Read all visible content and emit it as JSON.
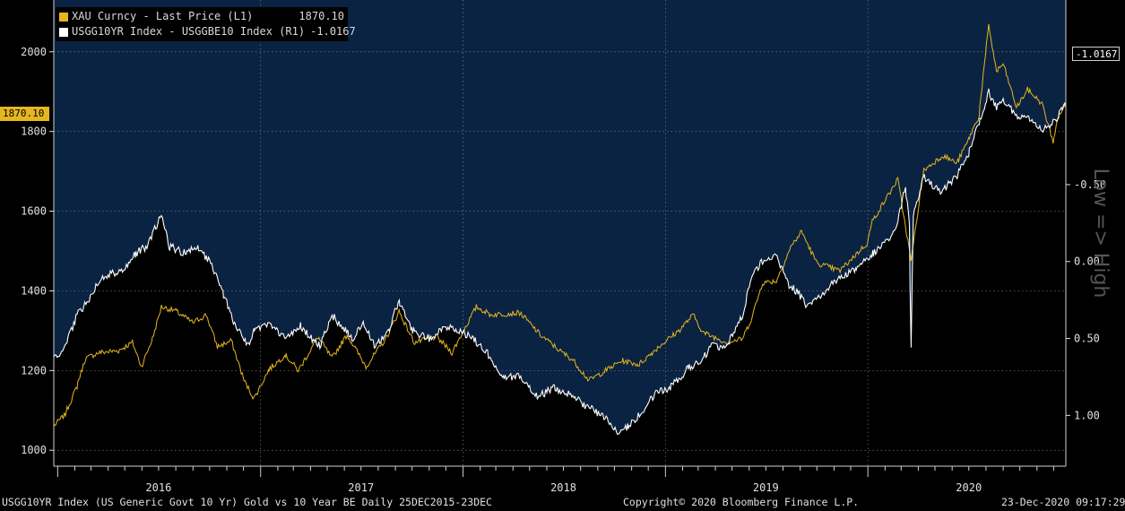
{
  "chart_data": {
    "type": "line",
    "title": "USGG10YR Index (US Generic Govt 10 Yr) Gold vs 10 Year BE  Daily 25DEC2015-23DEC",
    "x_range": [
      "2015-12-25",
      "2020-12-23"
    ],
    "year_labels": [
      "2016",
      "2017",
      "2018",
      "2019",
      "2020"
    ],
    "left_axis": {
      "ticks": [
        1000,
        1200,
        1400,
        1600,
        1800,
        2000
      ],
      "range": [
        960,
        2130
      ]
    },
    "right_axis": {
      "ticks": [
        -0.5,
        0.0,
        0.5,
        1.0
      ],
      "tick_labels": [
        "-0.50",
        "0.00",
        "0.50",
        "1.00"
      ],
      "range": [
        1.33,
        -1.7
      ],
      "inverted": true,
      "side_label": "Low => High"
    },
    "grid": true,
    "series": [
      {
        "name": "XAU Curncy - Last Price (L1)",
        "axis": "left",
        "color": "#e6b61e",
        "last_value": "1870.10",
        "points": [
          [
            "2015-12-25",
            1060
          ],
          [
            "2016-01-15",
            1090
          ],
          [
            "2016-02-05",
            1160
          ],
          [
            "2016-02-20",
            1230
          ],
          [
            "2016-03-15",
            1245
          ],
          [
            "2016-04-20",
            1250
          ],
          [
            "2016-05-15",
            1270
          ],
          [
            "2016-05-31",
            1210
          ],
          [
            "2016-06-20",
            1280
          ],
          [
            "2016-07-06",
            1360
          ],
          [
            "2016-08-01",
            1350
          ],
          [
            "2016-09-01",
            1320
          ],
          [
            "2016-09-25",
            1340
          ],
          [
            "2016-10-15",
            1260
          ],
          [
            "2016-11-10",
            1275
          ],
          [
            "2016-12-01",
            1180
          ],
          [
            "2016-12-20",
            1130
          ],
          [
            "2017-01-15",
            1200
          ],
          [
            "2017-02-15",
            1240
          ],
          [
            "2017-03-10",
            1200
          ],
          [
            "2017-04-15",
            1285
          ],
          [
            "2017-05-10",
            1230
          ],
          [
            "2017-06-06",
            1290
          ],
          [
            "2017-07-10",
            1210
          ],
          [
            "2017-08-15",
            1280
          ],
          [
            "2017-09-08",
            1350
          ],
          [
            "2017-10-05",
            1270
          ],
          [
            "2017-11-15",
            1285
          ],
          [
            "2017-12-12",
            1245
          ],
          [
            "2018-01-25",
            1360
          ],
          [
            "2018-02-20",
            1340
          ],
          [
            "2018-04-15",
            1345
          ],
          [
            "2018-05-20",
            1290
          ],
          [
            "2018-06-25",
            1250
          ],
          [
            "2018-07-20",
            1225
          ],
          [
            "2018-08-16",
            1175
          ],
          [
            "2018-09-15",
            1200
          ],
          [
            "2018-10-15",
            1225
          ],
          [
            "2018-11-15",
            1215
          ],
          [
            "2018-12-20",
            1260
          ],
          [
            "2019-01-25",
            1300
          ],
          [
            "2019-02-20",
            1340
          ],
          [
            "2019-03-10",
            1295
          ],
          [
            "2019-04-23",
            1270
          ],
          [
            "2019-05-20",
            1280
          ],
          [
            "2019-06-05",
            1330
          ],
          [
            "2019-06-25",
            1420
          ],
          [
            "2019-07-20",
            1425
          ],
          [
            "2019-08-15",
            1510
          ],
          [
            "2019-09-04",
            1550
          ],
          [
            "2019-10-01",
            1470
          ],
          [
            "2019-11-12",
            1450
          ],
          [
            "2019-12-31",
            1520
          ],
          [
            "2020-01-08",
            1570
          ],
          [
            "2020-02-24",
            1680
          ],
          [
            "2020-03-19",
            1475
          ],
          [
            "2020-04-10",
            1700
          ],
          [
            "2020-05-15",
            1740
          ],
          [
            "2020-06-10",
            1720
          ],
          [
            "2020-07-01",
            1780
          ],
          [
            "2020-07-20",
            1840
          ],
          [
            "2020-08-06",
            2065
          ],
          [
            "2020-08-20",
            1950
          ],
          [
            "2020-09-01",
            1970
          ],
          [
            "2020-09-25",
            1860
          ],
          [
            "2020-10-15",
            1905
          ],
          [
            "2020-11-10",
            1870
          ],
          [
            "2020-11-30",
            1775
          ],
          [
            "2020-12-10",
            1840
          ],
          [
            "2020-12-23",
            1870.1
          ]
        ]
      },
      {
        "name": "USGG10YR Index - USGGBE10 Index (R1)",
        "axis": "right",
        "color": "#ffffff",
        "last_value": "-1.0167",
        "points": [
          [
            "2015-12-25",
            0.62
          ],
          [
            "2016-01-10",
            0.6
          ],
          [
            "2016-02-05",
            0.35
          ],
          [
            "2016-02-25",
            0.25
          ],
          [
            "2016-03-20",
            0.1
          ],
          [
            "2016-05-01",
            0.05
          ],
          [
            "2016-05-20",
            -0.05
          ],
          [
            "2016-06-10",
            -0.1
          ],
          [
            "2016-07-06",
            -0.3
          ],
          [
            "2016-07-20",
            -0.1
          ],
          [
            "2016-08-20",
            -0.05
          ],
          [
            "2016-09-10",
            -0.1
          ],
          [
            "2016-10-01",
            0.0
          ],
          [
            "2016-10-25",
            0.2
          ],
          [
            "2016-11-15",
            0.4
          ],
          [
            "2016-12-10",
            0.55
          ],
          [
            "2016-12-20",
            0.45
          ],
          [
            "2017-01-10",
            0.4
          ],
          [
            "2017-02-15",
            0.5
          ],
          [
            "2017-03-14",
            0.42
          ],
          [
            "2017-04-18",
            0.55
          ],
          [
            "2017-05-10",
            0.35
          ],
          [
            "2017-06-15",
            0.5
          ],
          [
            "2017-07-05",
            0.4
          ],
          [
            "2017-07-25",
            0.55
          ],
          [
            "2017-08-20",
            0.45
          ],
          [
            "2017-09-08",
            0.25
          ],
          [
            "2017-10-01",
            0.45
          ],
          [
            "2017-11-01",
            0.5
          ],
          [
            "2017-12-01",
            0.42
          ],
          [
            "2018-01-20",
            0.5
          ],
          [
            "2018-02-20",
            0.62
          ],
          [
            "2018-03-15",
            0.75
          ],
          [
            "2018-04-15",
            0.75
          ],
          [
            "2018-05-15",
            0.88
          ],
          [
            "2018-06-15",
            0.82
          ],
          [
            "2018-07-20",
            0.88
          ],
          [
            "2018-08-15",
            0.95
          ],
          [
            "2018-09-10",
            1.0
          ],
          [
            "2018-10-08",
            1.12
          ],
          [
            "2018-10-25",
            1.07
          ],
          [
            "2018-11-15",
            1.0
          ],
          [
            "2018-12-15",
            0.85
          ],
          [
            "2019-01-10",
            0.82
          ],
          [
            "2019-02-10",
            0.7
          ],
          [
            "2019-03-05",
            0.65
          ],
          [
            "2019-03-25",
            0.55
          ],
          [
            "2019-04-20",
            0.55
          ],
          [
            "2019-05-20",
            0.35
          ],
          [
            "2019-06-05",
            0.1
          ],
          [
            "2019-06-25",
            0.0
          ],
          [
            "2019-07-20",
            -0.05
          ],
          [
            "2019-08-10",
            0.15
          ],
          [
            "2019-08-28",
            0.2
          ],
          [
            "2019-09-15",
            0.3
          ],
          [
            "2019-10-10",
            0.22
          ],
          [
            "2019-11-05",
            0.12
          ],
          [
            "2019-12-10",
            0.05
          ],
          [
            "2020-01-10",
            -0.05
          ],
          [
            "2020-02-20",
            -0.2
          ],
          [
            "2020-03-09",
            -0.5
          ],
          [
            "2020-03-16",
            -0.25
          ],
          [
            "2020-03-19",
            0.55
          ],
          [
            "2020-03-23",
            -0.3
          ],
          [
            "2020-04-10",
            -0.55
          ],
          [
            "2020-05-10",
            -0.45
          ],
          [
            "2020-06-10",
            -0.55
          ],
          [
            "2020-07-01",
            -0.7
          ],
          [
            "2020-07-20",
            -0.9
          ],
          [
            "2020-08-06",
            -1.1
          ],
          [
            "2020-08-20",
            -1.0
          ],
          [
            "2020-09-01",
            -1.05
          ],
          [
            "2020-09-25",
            -0.95
          ],
          [
            "2020-10-15",
            -0.95
          ],
          [
            "2020-11-10",
            -0.85
          ],
          [
            "2020-11-30",
            -0.9
          ],
          [
            "2020-12-10",
            -0.95
          ],
          [
            "2020-12-23",
            -1.0167
          ]
        ]
      }
    ]
  },
  "legend": {
    "items": [
      {
        "label": "XAU Curncy - Last Price (L1)",
        "value": "1870.10",
        "color": "#e6b61e"
      },
      {
        "label": "USGG10YR Index - USGGBE10 Index (R1)",
        "value": "-1.0167",
        "color": "#ffffff"
      }
    ]
  },
  "tags": {
    "left_last": "1870.10",
    "right_last": "-1.0167"
  },
  "footer": {
    "left": "USGG10YR Index (US Generic Govt 10 Yr) Gold vs 10 Year BE  Daily 25DEC2015-23DEC",
    "center": "Copyright© 2020 Bloomberg Finance L.P.",
    "right": "23-Dec-2020 09:17:29"
  },
  "colors": {
    "background": "#000000",
    "fill": "#0b2342",
    "gold": "#e6b61e",
    "white": "#ffffff",
    "grid": "#7a7a7a"
  }
}
